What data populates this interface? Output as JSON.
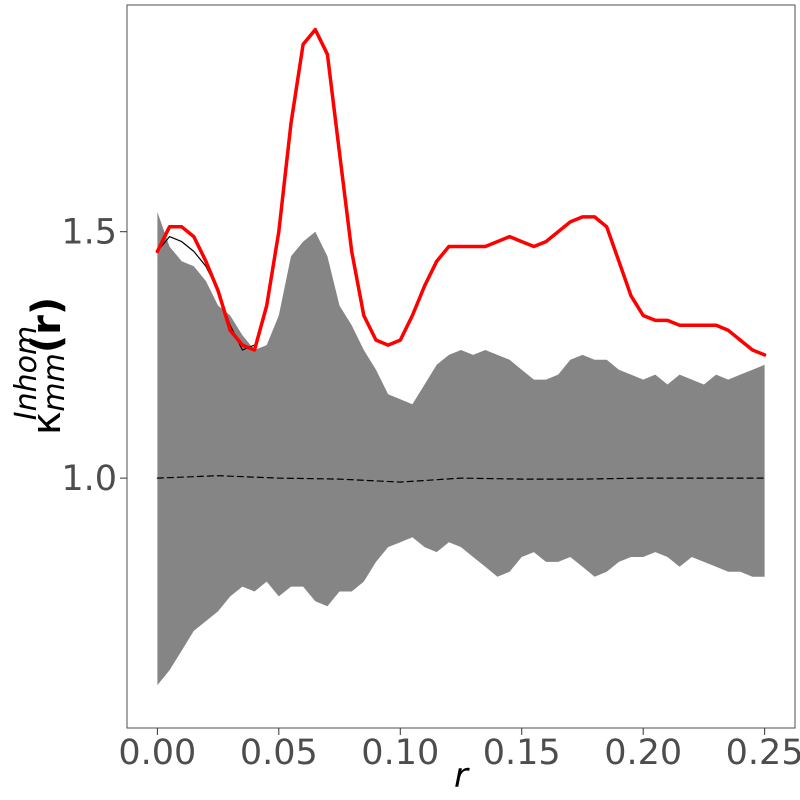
{
  "chart_data": {
    "type": "line",
    "xlabel": "r",
    "ylabel": {
      "base": "κ",
      "superscript": "Inhom",
      "subscript": "mm",
      "suffix": "(r)"
    },
    "xlim": [
      -0.0125,
      0.2625
    ],
    "ylim": [
      0.493,
      1.96
    ],
    "x_ticks": [
      0.0,
      0.05,
      0.1,
      0.15,
      0.2,
      0.25
    ],
    "x_tick_labels": [
      "0.00",
      "0.05",
      "0.10",
      "0.15",
      "0.20",
      "0.25"
    ],
    "y_ticks": [
      1.0,
      1.5
    ],
    "y_tick_labels": [
      "1.0",
      "1.5"
    ],
    "grid": false,
    "legend": "none",
    "envelope": {
      "x": [
        0.0,
        0.005,
        0.01,
        0.015,
        0.02,
        0.025,
        0.03,
        0.035,
        0.04,
        0.045,
        0.05,
        0.055,
        0.06,
        0.065,
        0.07,
        0.075,
        0.08,
        0.085,
        0.09,
        0.095,
        0.1,
        0.105,
        0.11,
        0.115,
        0.12,
        0.125,
        0.13,
        0.135,
        0.14,
        0.145,
        0.15,
        0.155,
        0.16,
        0.165,
        0.17,
        0.175,
        0.18,
        0.185,
        0.19,
        0.195,
        0.2,
        0.205,
        0.21,
        0.215,
        0.22,
        0.225,
        0.23,
        0.235,
        0.24,
        0.245,
        0.25
      ],
      "upper": [
        1.54,
        1.47,
        1.44,
        1.43,
        1.4,
        1.35,
        1.33,
        1.29,
        1.26,
        1.27,
        1.33,
        1.45,
        1.48,
        1.5,
        1.45,
        1.35,
        1.31,
        1.26,
        1.22,
        1.17,
        1.16,
        1.15,
        1.19,
        1.23,
        1.25,
        1.26,
        1.25,
        1.26,
        1.25,
        1.24,
        1.22,
        1.2,
        1.2,
        1.21,
        1.24,
        1.25,
        1.24,
        1.24,
        1.22,
        1.21,
        1.2,
        1.21,
        1.19,
        1.21,
        1.2,
        1.19,
        1.21,
        1.2,
        1.21,
        1.22,
        1.23
      ],
      "lower": [
        0.58,
        0.61,
        0.65,
        0.69,
        0.71,
        0.73,
        0.76,
        0.78,
        0.77,
        0.79,
        0.76,
        0.78,
        0.78,
        0.75,
        0.74,
        0.77,
        0.77,
        0.79,
        0.83,
        0.86,
        0.87,
        0.88,
        0.86,
        0.85,
        0.87,
        0.86,
        0.84,
        0.82,
        0.8,
        0.81,
        0.84,
        0.85,
        0.83,
        0.83,
        0.84,
        0.82,
        0.8,
        0.81,
        0.83,
        0.84,
        0.84,
        0.85,
        0.84,
        0.82,
        0.84,
        0.83,
        0.82,
        0.81,
        0.81,
        0.8,
        0.8
      ]
    },
    "series": [
      {
        "style": "dashed",
        "color": "#000000",
        "x": [
          0.0,
          0.025,
          0.05,
          0.075,
          0.1,
          0.125,
          0.15,
          0.175,
          0.2,
          0.225,
          0.25
        ],
        "y": [
          1.0,
          1.005,
          1.0,
          0.998,
          0.992,
          1.0,
          0.998,
          0.998,
          1.0,
          1.0,
          1.0
        ]
      },
      {
        "style": "solid-thin",
        "color": "#000000",
        "x": [
          0.0,
          0.005,
          0.01,
          0.015,
          0.02,
          0.025,
          0.03,
          0.035,
          0.04
        ],
        "y": [
          1.46,
          1.49,
          1.48,
          1.46,
          1.43,
          1.38,
          1.31,
          1.26,
          1.27
        ]
      },
      {
        "style": "solid-thick",
        "color": "#ff0000",
        "x": [
          0.0,
          0.005,
          0.01,
          0.015,
          0.02,
          0.025,
          0.03,
          0.035,
          0.04,
          0.045,
          0.05,
          0.055,
          0.06,
          0.065,
          0.07,
          0.075,
          0.08,
          0.085,
          0.09,
          0.095,
          0.1,
          0.105,
          0.11,
          0.115,
          0.12,
          0.125,
          0.13,
          0.135,
          0.14,
          0.145,
          0.15,
          0.155,
          0.16,
          0.165,
          0.17,
          0.175,
          0.18,
          0.185,
          0.19,
          0.195,
          0.2,
          0.205,
          0.21,
          0.215,
          0.22,
          0.225,
          0.23,
          0.235,
          0.24,
          0.245,
          0.25
        ],
        "y": [
          1.46,
          1.51,
          1.51,
          1.49,
          1.44,
          1.38,
          1.3,
          1.27,
          1.26,
          1.35,
          1.5,
          1.72,
          1.88,
          1.91,
          1.86,
          1.66,
          1.46,
          1.33,
          1.28,
          1.27,
          1.28,
          1.33,
          1.39,
          1.44,
          1.47,
          1.47,
          1.47,
          1.47,
          1.48,
          1.49,
          1.48,
          1.47,
          1.48,
          1.5,
          1.52,
          1.53,
          1.53,
          1.51,
          1.44,
          1.37,
          1.33,
          1.32,
          1.32,
          1.31,
          1.31,
          1.31,
          1.31,
          1.3,
          1.28,
          1.26,
          1.25
        ]
      }
    ]
  }
}
